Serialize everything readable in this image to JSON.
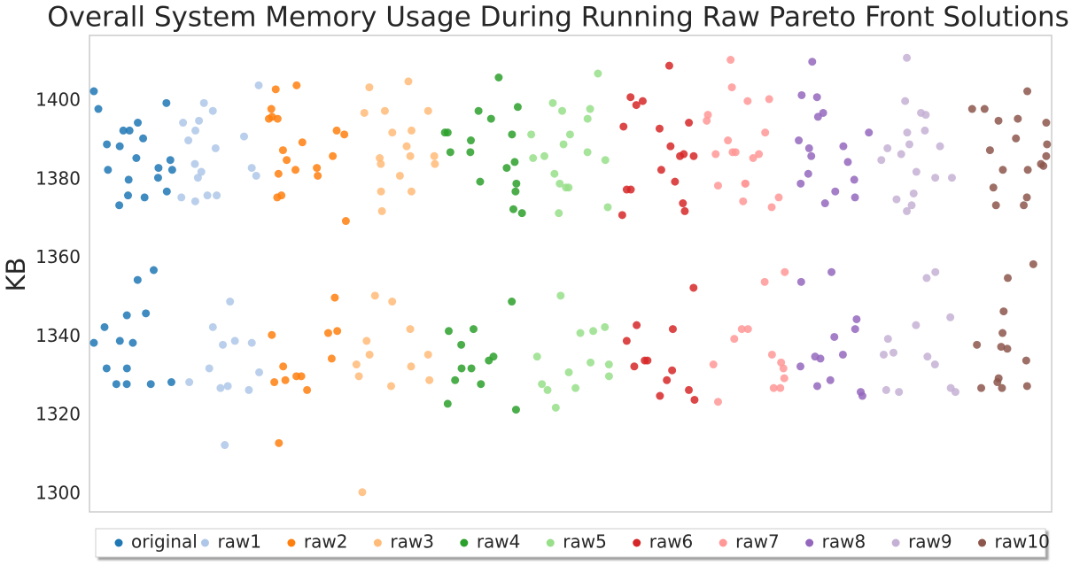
{
  "chart_data": {
    "type": "strip",
    "title": "Overall System Memory Usage During Running Raw Pareto Front Solutions",
    "y_label": "KB",
    "ylim": [
      1295.5,
      1416.7
    ],
    "yticks": [
      1300,
      1320,
      1340,
      1360,
      1380,
      1400
    ],
    "grid": false,
    "legend": "bottom",
    "series": [
      {
        "name": "original",
        "color": "#1f77b4",
        "values": [
          1402.5,
          1399.5,
          1398,
          1394.5,
          1392.5,
          1392.5,
          1390.5,
          1389,
          1388.5,
          1385.5,
          1385,
          1383,
          1382.5,
          1382.5,
          1380.5,
          1380,
          1377,
          1376,
          1375.5,
          1373.5,
          1357,
          1354.5,
          1346,
          1345.5,
          1342.5,
          1339,
          1338.5,
          1338.5,
          1332,
          1332,
          1328.5,
          1328,
          1328,
          1328
        ]
      },
      {
        "name": "raw1",
        "color": "#aec7e8",
        "values": [
          1404,
          1399.5,
          1397.5,
          1395,
          1394.5,
          1392.5,
          1391,
          1390,
          1388,
          1384,
          1383,
          1382,
          1381,
          1380.5,
          1376,
          1376,
          1375.5,
          1374.5,
          1349,
          1342.5,
          1339,
          1338.5,
          1338,
          1332,
          1331,
          1328.5,
          1327.5,
          1327,
          1326.5,
          1312.5
        ]
      },
      {
        "name": "raw2",
        "color": "#ff7f0e",
        "values": [
          1404,
          1403,
          1398,
          1396,
          1395.5,
          1395.5,
          1392.5,
          1391.5,
          1389.5,
          1387.5,
          1386,
          1385,
          1383,
          1382.5,
          1381.5,
          1381,
          1376,
          1375.5,
          1369.5,
          1350,
          1341.5,
          1341,
          1340.5,
          1334.5,
          1332.5,
          1330,
          1330,
          1329,
          1328.5,
          1326.5,
          1313
        ]
      },
      {
        "name": "raw3",
        "color": "#ffbb78",
        "values": [
          1405,
          1403.5,
          1397.5,
          1397.5,
          1397,
          1392.5,
          1392,
          1388.5,
          1386,
          1386,
          1385.5,
          1384,
          1384,
          1381,
          1377,
          1377,
          1372,
          1350.5,
          1349,
          1342,
          1339,
          1335.5,
          1335.5,
          1333,
          1332.5,
          1330,
          1329,
          1327.5,
          1300.5
        ]
      },
      {
        "name": "raw4",
        "color": "#2ca02c",
        "values": [
          1406,
          1398.5,
          1397.5,
          1395.5,
          1392,
          1392,
          1391.5,
          1390,
          1387,
          1387,
          1384.5,
          1383,
          1379.5,
          1379,
          1377,
          1372.5,
          1371.5,
          1349,
          1342,
          1341.5,
          1338,
          1335,
          1334,
          1332,
          1332,
          1329,
          1328,
          1323,
          1321.5
        ]
      },
      {
        "name": "raw5",
        "color": "#98df8a",
        "values": [
          1407,
          1399.5,
          1398,
          1397.5,
          1395.5,
          1391.5,
          1391.5,
          1389,
          1387,
          1386,
          1385.5,
          1385,
          1381.5,
          1379,
          1378,
          1378,
          1373,
          1371.5,
          1350.5,
          1342.5,
          1341.5,
          1341,
          1335,
          1333.5,
          1333,
          1331,
          1330,
          1328,
          1327,
          1326.5,
          1322
        ]
      },
      {
        "name": "raw6",
        "color": "#d62728",
        "values": [
          1409,
          1401,
          1400,
          1399,
          1394.5,
          1393.5,
          1393,
          1388.5,
          1386.5,
          1386,
          1386,
          1382.5,
          1379.5,
          1377.5,
          1377.5,
          1374,
          1372,
          1371,
          1352.5,
          1343,
          1342,
          1339,
          1334,
          1334,
          1332.5,
          1331.5,
          1329,
          1326.5,
          1325,
          1324
        ]
      },
      {
        "name": "raw7",
        "color": "#ff9896",
        "values": [
          1410.5,
          1403.5,
          1400.5,
          1400,
          1396.5,
          1395,
          1392,
          1390,
          1387,
          1387,
          1386.5,
          1386.5,
          1385.5,
          1379,
          1379,
          1378.5,
          1375.5,
          1374.5,
          1373,
          1356.5,
          1354,
          1342,
          1342,
          1339.5,
          1335.5,
          1333.5,
          1333,
          1332,
          1329.5,
          1327,
          1327,
          1323.5
        ]
      },
      {
        "name": "raw8",
        "color": "#9467bd",
        "values": [
          1410,
          1401.5,
          1401,
          1397,
          1396,
          1392,
          1390,
          1388.5,
          1388,
          1386,
          1384.5,
          1381.5,
          1380,
          1379,
          1377,
          1375.5,
          1374,
          1356.5,
          1354,
          1344.5,
          1342,
          1340,
          1335.5,
          1335,
          1334.5,
          1332.5,
          1329,
          1327.5,
          1326,
          1325
        ]
      },
      {
        "name": "raw9",
        "color": "#c5b0d5",
        "values": [
          1411,
          1400,
          1397,
          1396.5,
          1392.5,
          1392,
          1389,
          1388.5,
          1388,
          1386.5,
          1385,
          1382,
          1380.5,
          1380.5,
          1376.5,
          1375,
          1373.5,
          1372,
          1356.5,
          1355,
          1345,
          1343,
          1339.5,
          1336,
          1335.5,
          1335,
          1333,
          1327,
          1326.5,
          1326,
          1326
        ]
      },
      {
        "name": "raw10",
        "color": "#8c564b",
        "values": [
          1402.5,
          1398,
          1398,
          1395.5,
          1395,
          1394.5,
          1390.5,
          1389,
          1387.5,
          1386,
          1384,
          1383.5,
          1382.5,
          1382.5,
          1378,
          1375.5,
          1373.5,
          1373.5,
          1358.5,
          1355,
          1346.5,
          1341,
          1338,
          1337.5,
          1337,
          1334,
          1329.5,
          1328.5,
          1327.5,
          1327,
          1327
        ]
      }
    ]
  }
}
